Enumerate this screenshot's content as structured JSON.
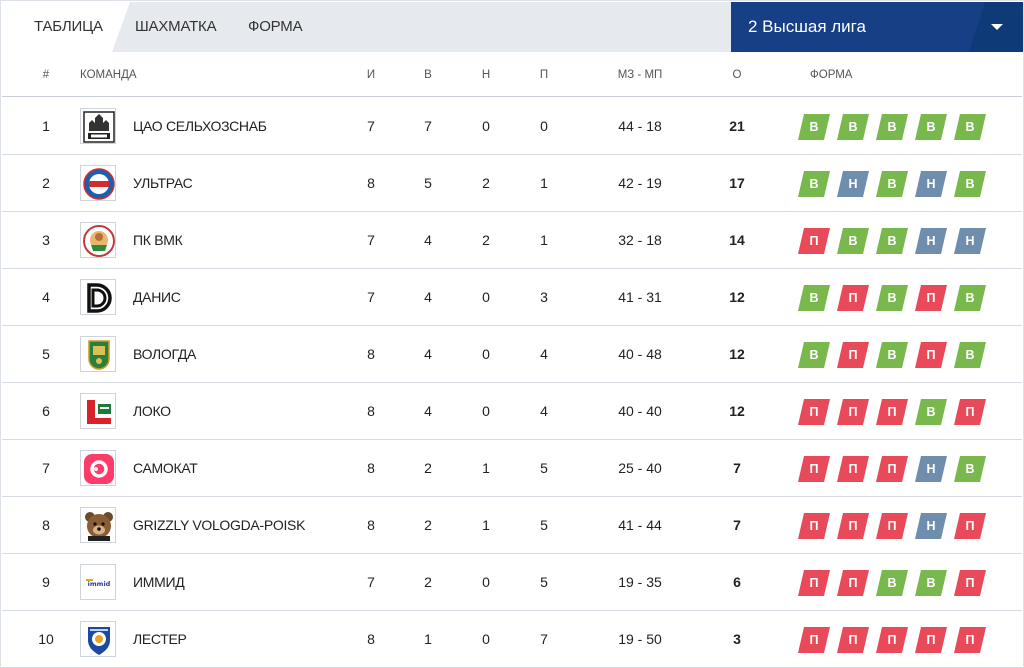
{
  "tabs": [
    {
      "label": "Таблица",
      "active": true
    },
    {
      "label": "Шахматка",
      "active": false
    },
    {
      "label": "Форма",
      "active": false
    }
  ],
  "league": {
    "label": "2 Высшая лига"
  },
  "columns": {
    "rank": "#",
    "team": "Команда",
    "games": "И",
    "wins": "В",
    "draws": "Н",
    "losses": "П",
    "goals": "МЗ - МП",
    "points": "О",
    "form": "Форма"
  },
  "colors": {
    "win": "#79b84c",
    "loss": "#e84a5a",
    "draw": "#6f8ead",
    "league_bg": "#173f85"
  },
  "rows": [
    {
      "rank": "1",
      "team": "ЦАО СЕЛЬХОЗСНАБ",
      "logo": "cao-logo-icon",
      "games": "7",
      "wins": "7",
      "draws": "0",
      "losses": "0",
      "goals": "44 - 18",
      "points": "21",
      "form": [
        "В",
        "В",
        "В",
        "В",
        "В"
      ]
    },
    {
      "rank": "2",
      "team": "УЛЬТРАС",
      "logo": "ultras-logo-icon",
      "games": "8",
      "wins": "5",
      "draws": "2",
      "losses": "1",
      "goals": "42 - 19",
      "points": "17",
      "form": [
        "В",
        "Н",
        "В",
        "Н",
        "В"
      ]
    },
    {
      "rank": "3",
      "team": "ПК ВМК",
      "logo": "pk-vmk-logo-icon",
      "games": "7",
      "wins": "4",
      "draws": "2",
      "losses": "1",
      "goals": "32 - 18",
      "points": "14",
      "form": [
        "П",
        "В",
        "В",
        "Н",
        "Н"
      ]
    },
    {
      "rank": "4",
      "team": "ДАНИС",
      "logo": "danis-logo-icon",
      "games": "7",
      "wins": "4",
      "draws": "0",
      "losses": "3",
      "goals": "41 - 31",
      "points": "12",
      "form": [
        "В",
        "П",
        "В",
        "П",
        "В"
      ]
    },
    {
      "rank": "5",
      "team": "ВОЛОГДА",
      "logo": "vologda-logo-icon",
      "games": "8",
      "wins": "4",
      "draws": "0",
      "losses": "4",
      "goals": "40 - 48",
      "points": "12",
      "form": [
        "В",
        "П",
        "В",
        "П",
        "В"
      ]
    },
    {
      "rank": "6",
      "team": "ЛОКО",
      "logo": "loko-logo-icon",
      "games": "8",
      "wins": "4",
      "draws": "0",
      "losses": "4",
      "goals": "40 - 40",
      "points": "12",
      "form": [
        "П",
        "П",
        "П",
        "В",
        "П"
      ]
    },
    {
      "rank": "7",
      "team": "САМОКАТ",
      "logo": "samokat-logo-icon",
      "games": "8",
      "wins": "2",
      "draws": "1",
      "losses": "5",
      "goals": "25 - 40",
      "points": "7",
      "form": [
        "П",
        "П",
        "П",
        "Н",
        "В"
      ]
    },
    {
      "rank": "8",
      "team": "GRIZZLY VOLOGDA-POISK",
      "logo": "grizzly-logo-icon",
      "games": "8",
      "wins": "2",
      "draws": "1",
      "losses": "5",
      "goals": "41 - 44",
      "points": "7",
      "form": [
        "П",
        "П",
        "П",
        "Н",
        "П"
      ]
    },
    {
      "rank": "9",
      "team": "ИММИД",
      "logo": "immid-logo-icon",
      "games": "7",
      "wins": "2",
      "draws": "0",
      "losses": "5",
      "goals": "19 - 35",
      "points": "6",
      "form": [
        "П",
        "П",
        "В",
        "В",
        "П"
      ]
    },
    {
      "rank": "10",
      "team": "ЛЕСТЕР",
      "logo": "lester-logo-icon",
      "games": "8",
      "wins": "1",
      "draws": "0",
      "losses": "7",
      "goals": "19 - 50",
      "points": "3",
      "form": [
        "П",
        "П",
        "П",
        "П",
        "П"
      ]
    }
  ]
}
